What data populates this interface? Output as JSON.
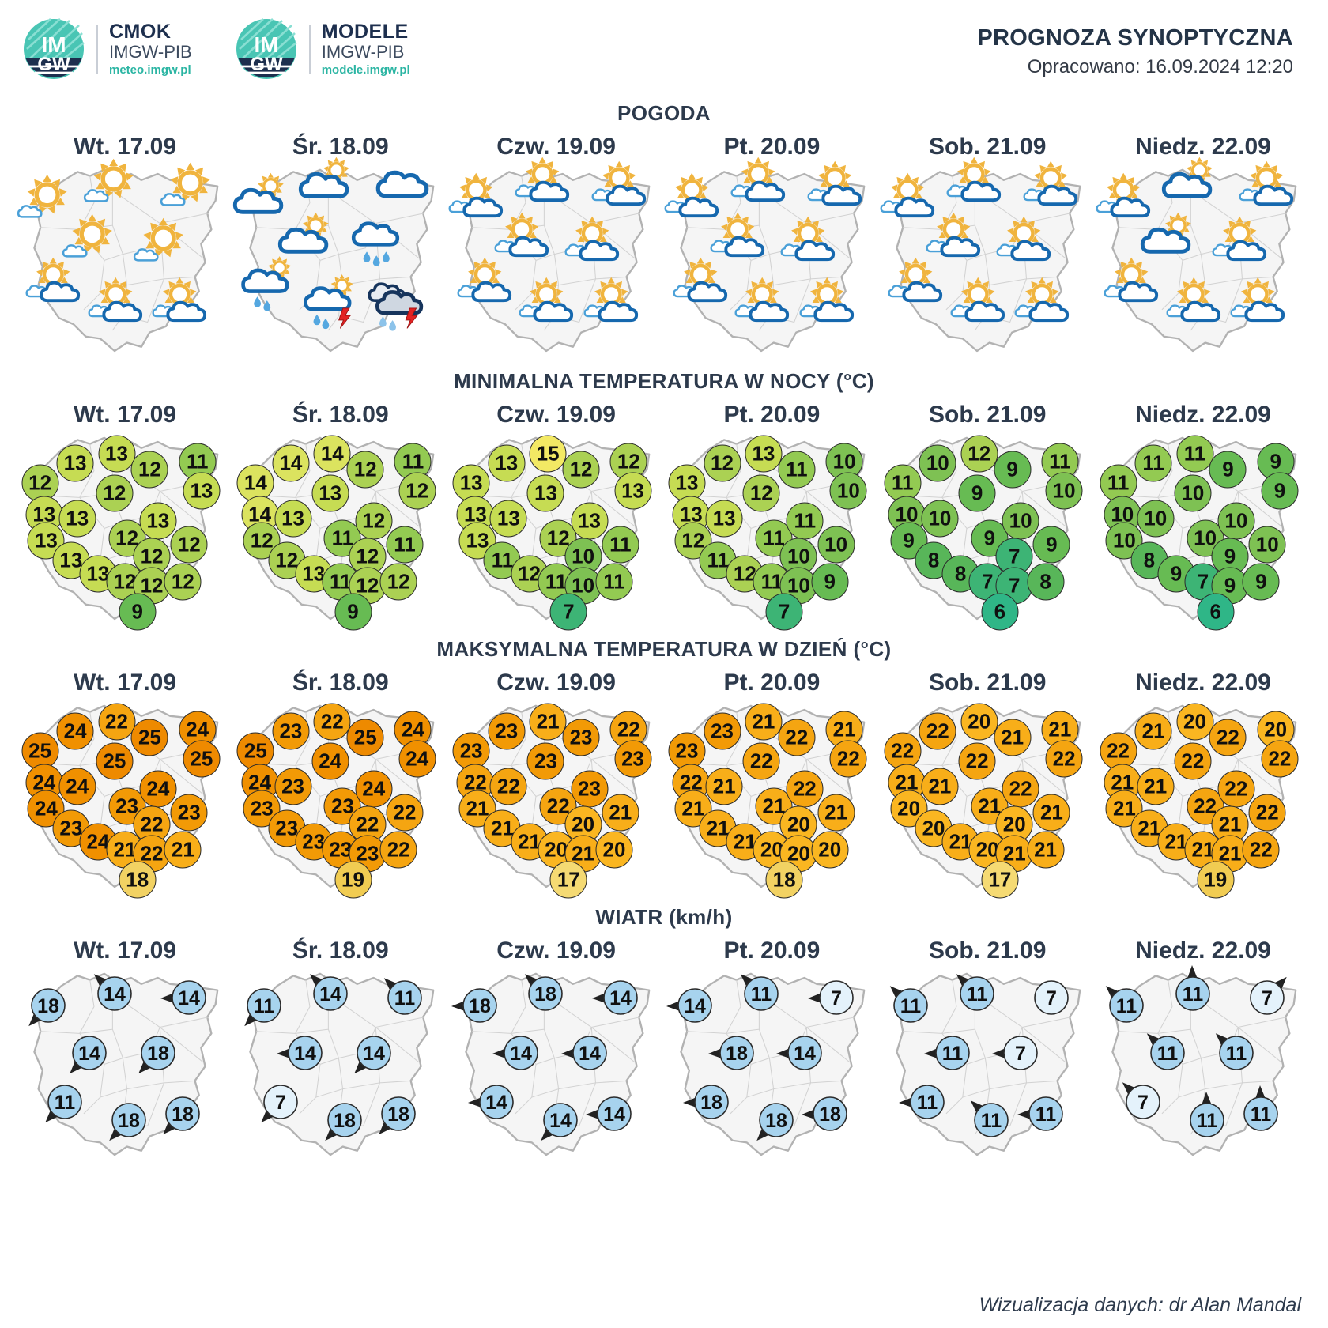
{
  "header": {
    "logo1": {
      "name": "CMOK",
      "org": "IMGW-PIB",
      "url": "meteo.imgw.pl",
      "mark_top": "IM",
      "mark_bottom": "GW"
    },
    "logo2": {
      "name": "MODELE",
      "org": "IMGW-PIB",
      "url": "modele.imgw.pl",
      "mark_top": "IM",
      "mark_bottom": "GW"
    },
    "title": "PROGNOZA SYNOPTYCZNA",
    "subtitle": "Opracowano: 16.09.2024 12:20"
  },
  "sections": {
    "weather_title": "POGODA",
    "tmin_title": "MINIMALNA TEMPERATURA W NOCY (°C)",
    "tmax_title": "MAKSYMALNA TEMPERATURA W DZIEŃ (°C)",
    "wind_title": "WIATR (km/h)"
  },
  "days": [
    "Wt. 17.09",
    "Śr. 18.09",
    "Czw. 19.09",
    "Pt. 20.09",
    "Sob. 21.09",
    "Niedz. 22.09"
  ],
  "footer": "Wizualizacja danych: dr Alan Mandal",
  "colors": {
    "tmin": {
      "6": "#2fb687",
      "7": "#3db475",
      "8": "#58b659",
      "9": "#67bb53",
      "10": "#7ec153",
      "11": "#93ca52",
      "12": "#abd153",
      "13": "#c6dc53",
      "14": "#dbe35f",
      "15": "#f3e964"
    },
    "tmax": {
      "17": "#f5da73",
      "18": "#f2d263",
      "19": "#f1cc52",
      "20": "#fab621",
      "21": "#f8ae19",
      "22": "#f5a511",
      "23": "#f29a06",
      "24": "#f09000",
      "25": "#ee8a00"
    },
    "wind_light": "#e4f2fb",
    "wind_blue": "#a7d3ee",
    "sun": "#f0b43e",
    "cloud_small": "#4aa0d8",
    "cloud": "#1668ae",
    "storm_cloud": "#16345c",
    "rain": "#54a7e0",
    "bolt": "#e32222"
  },
  "chart_data": {
    "type": "table",
    "title": "PROGNOZA SYNOPTYCZNA",
    "days": [
      "Wt. 17.09",
      "Śr. 18.09",
      "Czw. 19.09",
      "Pt. 20.09",
      "Sob. 21.09",
      "Niedz. 22.09"
    ],
    "weather": {
      "title": "POGODA",
      "icon_positions": [
        "nw",
        "n",
        "ne",
        "w",
        "e",
        "sw",
        "s",
        "se"
      ],
      "icons": [
        [
          "sun-small-cloud",
          "sun-small-cloud",
          "sun-small-cloud",
          "sun-small-cloud",
          "sun-small-cloud",
          "partly-cloudy",
          "partly-cloudy",
          "partly-cloudy"
        ],
        [
          "mostly-cloudy",
          "mostly-cloudy",
          "cloud",
          "mostly-cloudy",
          "cloud-rain",
          "sun-rain",
          "sun-storm",
          "dark-storm"
        ],
        [
          "partly-cloudy",
          "partly-cloudy",
          "partly-cloudy",
          "partly-cloudy",
          "partly-cloudy",
          "partly-cloudy",
          "partly-cloudy",
          "partly-cloudy"
        ],
        [
          "partly-cloudy",
          "partly-cloudy",
          "partly-cloudy",
          "partly-cloudy",
          "partly-cloudy",
          "partly-cloudy",
          "partly-cloudy",
          "partly-cloudy"
        ],
        [
          "partly-cloudy",
          "partly-cloudy",
          "partly-cloudy",
          "partly-cloudy",
          "partly-cloudy",
          "partly-cloudy",
          "partly-cloudy",
          "partly-cloudy"
        ],
        [
          "partly-cloudy",
          "mostly-cloudy",
          "partly-cloudy",
          "mostly-cloudy",
          "partly-cloudy",
          "partly-cloudy",
          "partly-cloudy",
          "partly-cloudy"
        ]
      ]
    },
    "tmin": {
      "title": "MINIMALNA TEMPERATURA W NOCY (°C)",
      "values": [
        [
          12,
          13,
          13,
          12,
          11,
          13,
          12,
          13,
          13,
          13,
          13,
          13,
          12,
          13,
          12,
          12,
          12,
          12,
          12,
          9
        ],
        [
          14,
          14,
          14,
          12,
          11,
          12,
          13,
          14,
          13,
          12,
          12,
          13,
          11,
          12,
          12,
          11,
          11,
          12,
          12,
          9
        ],
        [
          13,
          13,
          15,
          12,
          12,
          13,
          13,
          13,
          13,
          13,
          11,
          12,
          12,
          13,
          10,
          11,
          11,
          10,
          11,
          7
        ],
        [
          13,
          12,
          13,
          11,
          10,
          10,
          12,
          13,
          13,
          12,
          11,
          12,
          11,
          11,
          10,
          10,
          11,
          10,
          9,
          7
        ],
        [
          11,
          10,
          12,
          9,
          11,
          10,
          9,
          10,
          10,
          9,
          8,
          8,
          9,
          10,
          7,
          9,
          7,
          7,
          8,
          6
        ],
        [
          11,
          11,
          11,
          9,
          9,
          9,
          10,
          10,
          10,
          10,
          8,
          9,
          10,
          10,
          9,
          10,
          7,
          9,
          9,
          6
        ]
      ]
    },
    "tmax": {
      "title": "MAKSYMALNA TEMPERATURA W DZIEŃ (°C)",
      "values": [
        [
          25,
          24,
          22,
          25,
          24,
          25,
          25,
          24,
          24,
          24,
          23,
          24,
          23,
          24,
          22,
          23,
          21,
          22,
          21,
          18
        ],
        [
          25,
          23,
          22,
          25,
          24,
          24,
          24,
          24,
          23,
          23,
          23,
          23,
          23,
          24,
          22,
          22,
          23,
          23,
          22,
          19
        ],
        [
          23,
          23,
          21,
          23,
          22,
          23,
          23,
          22,
          22,
          21,
          21,
          21,
          22,
          23,
          20,
          21,
          20,
          21,
          20,
          17
        ],
        [
          23,
          23,
          21,
          22,
          21,
          22,
          22,
          22,
          21,
          21,
          21,
          21,
          21,
          22,
          20,
          21,
          20,
          20,
          20,
          18
        ],
        [
          22,
          22,
          20,
          21,
          21,
          22,
          22,
          21,
          21,
          20,
          20,
          21,
          21,
          22,
          20,
          21,
          20,
          21,
          21,
          17
        ],
        [
          22,
          21,
          20,
          22,
          20,
          22,
          22,
          21,
          21,
          21,
          21,
          21,
          22,
          22,
          21,
          22,
          21,
          21,
          22,
          19
        ]
      ]
    },
    "wind": {
      "title": "WIATR (km/h)",
      "point_positions": [
        "nw",
        "n",
        "ne",
        "w",
        "e",
        "sw",
        "s",
        "se"
      ],
      "values": [
        [
          {
            "v": 18,
            "dir": "SW"
          },
          {
            "v": 14,
            "dir": "NW"
          },
          {
            "v": 14,
            "dir": "W"
          },
          {
            "v": 14,
            "dir": "SW"
          },
          {
            "v": 18,
            "dir": "SW"
          },
          {
            "v": 11,
            "dir": "SW"
          },
          {
            "v": 18,
            "dir": "SW"
          },
          {
            "v": 18,
            "dir": "SW"
          }
        ],
        [
          {
            "v": 11,
            "dir": "SW"
          },
          {
            "v": 14,
            "dir": "NW"
          },
          {
            "v": 11,
            "dir": "NW"
          },
          {
            "v": 14,
            "dir": "W"
          },
          {
            "v": 14,
            "dir": "SW"
          },
          {
            "v": 7,
            "dir": "SW"
          },
          {
            "v": 18,
            "dir": "SW"
          },
          {
            "v": 18,
            "dir": "SW"
          }
        ],
        [
          {
            "v": 18,
            "dir": "W"
          },
          {
            "v": 18,
            "dir": "NW"
          },
          {
            "v": 14,
            "dir": "W"
          },
          {
            "v": 14,
            "dir": "W"
          },
          {
            "v": 14,
            "dir": "W"
          },
          {
            "v": 14,
            "dir": "W"
          },
          {
            "v": 14,
            "dir": "SW"
          },
          {
            "v": 14,
            "dir": "W"
          }
        ],
        [
          {
            "v": 14,
            "dir": "W"
          },
          {
            "v": 11,
            "dir": "NW"
          },
          {
            "v": 7,
            "dir": "W"
          },
          {
            "v": 18,
            "dir": "W"
          },
          {
            "v": 14,
            "dir": "W"
          },
          {
            "v": 18,
            "dir": "W"
          },
          {
            "v": 18,
            "dir": "SW"
          },
          {
            "v": 18,
            "dir": "W"
          }
        ],
        [
          {
            "v": 11,
            "dir": "NW"
          },
          {
            "v": 11,
            "dir": "NW"
          },
          {
            "v": 7,
            "dir": null
          },
          {
            "v": 11,
            "dir": "W"
          },
          {
            "v": 7,
            "dir": "W"
          },
          {
            "v": 11,
            "dir": "W"
          },
          {
            "v": 11,
            "dir": "NW"
          },
          {
            "v": 11,
            "dir": "W"
          }
        ],
        [
          {
            "v": 11,
            "dir": "NW"
          },
          {
            "v": 11,
            "dir": "N"
          },
          {
            "v": 7,
            "dir": "NE"
          },
          {
            "v": 11,
            "dir": "NW"
          },
          {
            "v": 11,
            "dir": "NW"
          },
          {
            "v": 7,
            "dir": "NW"
          },
          {
            "v": 11,
            "dir": "N"
          },
          {
            "v": 11,
            "dir": "N"
          }
        ]
      ]
    }
  }
}
